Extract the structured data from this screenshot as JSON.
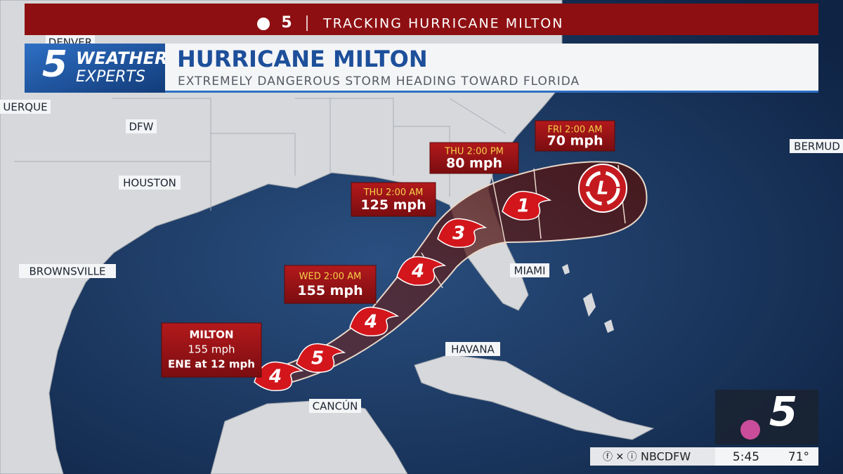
{
  "banner": {
    "channel": "5",
    "title": "TRACKING HURRICANE MILTON"
  },
  "logo": {
    "number": "5",
    "line1": "WEATHER",
    "line2": "EXPERTS"
  },
  "header": {
    "title": "HURRICANE MILTON",
    "subtitle": "EXTREMELY DANGEROUS STORM HEADING TOWARD FLORIDA"
  },
  "cities": [
    {
      "label": "DENVER"
    },
    {
      "label": "UERQUE"
    },
    {
      "label": "DFW"
    },
    {
      "label": "HOUSTON"
    },
    {
      "label": "BROWNSVILLE"
    },
    {
      "label": "MIAMI"
    },
    {
      "label": "HAVANA"
    },
    {
      "label": "CANCÚN"
    },
    {
      "label": "BERMUD"
    }
  ],
  "current": {
    "name": "MILTON",
    "wind": "155 mph",
    "motion": "ENE at 12 mph"
  },
  "forecast": [
    {
      "time": "WED 2:00 AM",
      "wind": "155 mph"
    },
    {
      "time": "THU 2:00 AM",
      "wind": "125 mph"
    },
    {
      "time": "THU 2:00 PM",
      "wind": "80 mph"
    },
    {
      "time": "FRI 2:00 AM",
      "wind": "70 mph"
    }
  ],
  "storms": [
    {
      "category": "4"
    },
    {
      "category": "5"
    },
    {
      "category": "4"
    },
    {
      "category": "4"
    },
    {
      "category": "3"
    },
    {
      "category": "1"
    },
    {
      "category": "L"
    }
  ],
  "ticker": {
    "handle": "NBCDFW",
    "time": "5:45",
    "temperature": "71°"
  },
  "station_logo": {
    "number": "5"
  }
}
